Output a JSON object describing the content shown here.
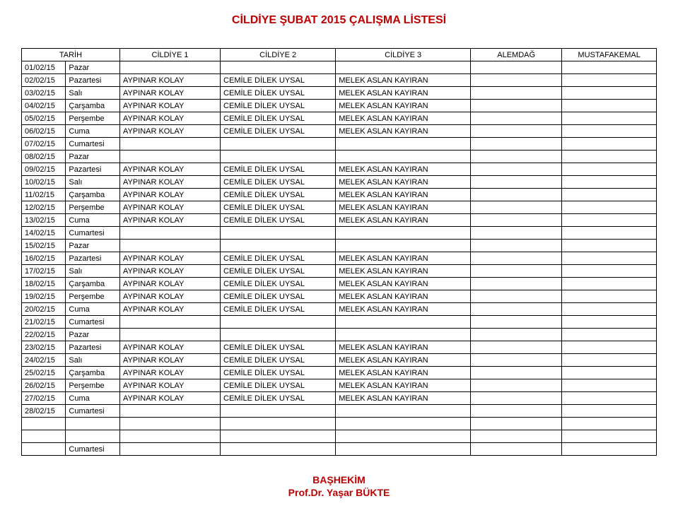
{
  "title": "CİLDİYE  ŞUBAT 2015  ÇALIŞMA LİSTESİ",
  "headers": {
    "date": "TARİH",
    "day": "",
    "c1": "CİLDİYE 1",
    "c2": "CİLDİYE 2",
    "c3": "CİLDİYE 3",
    "c4": "ALEMDAĞ",
    "c5": "MUSTAFAKEMAL"
  },
  "rows": [
    {
      "date": "01/02/15",
      "day": "Pazar",
      "c1": "",
      "c2": "",
      "c3": "",
      "c4": "",
      "c5": ""
    },
    {
      "date": "02/02/15",
      "day": "Pazartesi",
      "c1": "AYPINAR KOLAY",
      "c2": "CEMİLE DİLEK UYSAL",
      "c3": "MELEK ASLAN KAYIRAN",
      "c4": "",
      "c5": ""
    },
    {
      "date": "03/02/15",
      "day": "Salı",
      "c1": "AYPINAR KOLAY",
      "c2": "CEMİLE DİLEK UYSAL",
      "c3": "MELEK ASLAN KAYIRAN",
      "c4": "",
      "c5": ""
    },
    {
      "date": "04/02/15",
      "day": "Çarşamba",
      "c1": "AYPINAR KOLAY",
      "c2": "CEMİLE DİLEK UYSAL",
      "c3": "MELEK ASLAN KAYIRAN",
      "c4": "",
      "c5": ""
    },
    {
      "date": "05/02/15",
      "day": "Perşembe",
      "c1": "AYPINAR KOLAY",
      "c2": "CEMİLE DİLEK UYSAL",
      "c3": "MELEK ASLAN KAYIRAN",
      "c4": "",
      "c5": ""
    },
    {
      "date": "06/02/15",
      "day": "Cuma",
      "c1": "AYPINAR KOLAY",
      "c2": "CEMİLE DİLEK UYSAL",
      "c3": "MELEK ASLAN KAYIRAN",
      "c4": "",
      "c5": ""
    },
    {
      "date": "07/02/15",
      "day": "Cumartesi",
      "c1": "",
      "c2": "",
      "c3": "",
      "c4": "",
      "c5": ""
    },
    {
      "date": "08/02/15",
      "day": "Pazar",
      "c1": "",
      "c2": "",
      "c3": "",
      "c4": "",
      "c5": ""
    },
    {
      "date": "09/02/15",
      "day": "Pazartesi",
      "c1": "AYPINAR KOLAY",
      "c2": "CEMİLE DİLEK UYSAL",
      "c3": "MELEK ASLAN KAYIRAN",
      "c4": "",
      "c5": ""
    },
    {
      "date": "10/02/15",
      "day": "Salı",
      "c1": "AYPINAR KOLAY",
      "c2": "CEMİLE DİLEK UYSAL",
      "c3": "MELEK ASLAN KAYIRAN",
      "c4": "",
      "c5": ""
    },
    {
      "date": "11/02/15",
      "day": "Çarşamba",
      "c1": "AYPINAR KOLAY",
      "c2": "CEMİLE DİLEK UYSAL",
      "c3": "MELEK ASLAN KAYIRAN",
      "c4": "",
      "c5": ""
    },
    {
      "date": "12/02/15",
      "day": "Perşembe",
      "c1": "AYPINAR KOLAY",
      "c2": "CEMİLE DİLEK UYSAL",
      "c3": "MELEK ASLAN KAYIRAN",
      "c4": "",
      "c5": ""
    },
    {
      "date": "13/02/15",
      "day": "Cuma",
      "c1": "AYPINAR KOLAY",
      "c2": "CEMİLE DİLEK UYSAL",
      "c3": "MELEK ASLAN KAYIRAN",
      "c4": "",
      "c5": ""
    },
    {
      "date": "14/02/15",
      "day": "Cumartesi",
      "c1": "",
      "c2": "",
      "c3": "",
      "c4": "",
      "c5": ""
    },
    {
      "date": "15/02/15",
      "day": "Pazar",
      "c1": "",
      "c2": "",
      "c3": "",
      "c4": "",
      "c5": ""
    },
    {
      "date": "16/02/15",
      "day": "Pazartesi",
      "c1": "AYPINAR KOLAY",
      "c2": "CEMİLE DİLEK UYSAL",
      "c3": "MELEK ASLAN KAYIRAN",
      "c4": "",
      "c5": ""
    },
    {
      "date": "17/02/15",
      "day": "Salı",
      "c1": "AYPINAR KOLAY",
      "c2": "CEMİLE DİLEK UYSAL",
      "c3": "MELEK ASLAN KAYIRAN",
      "c4": "",
      "c5": ""
    },
    {
      "date": "18/02/15",
      "day": "Çarşamba",
      "c1": "AYPINAR KOLAY",
      "c2": "CEMİLE DİLEK UYSAL",
      "c3": "MELEK ASLAN KAYIRAN",
      "c4": "",
      "c5": ""
    },
    {
      "date": "19/02/15",
      "day": "Perşembe",
      "c1": "AYPINAR KOLAY",
      "c2": "CEMİLE DİLEK UYSAL",
      "c3": "MELEK ASLAN KAYIRAN",
      "c4": "",
      "c5": ""
    },
    {
      "date": "20/02/15",
      "day": "Cuma",
      "c1": "AYPINAR KOLAY",
      "c2": "CEMİLE DİLEK UYSAL",
      "c3": "MELEK ASLAN KAYIRAN",
      "c4": "",
      "c5": ""
    },
    {
      "date": "21/02/15",
      "day": "Cumartesi",
      "c1": "",
      "c2": "",
      "c3": "",
      "c4": "",
      "c5": ""
    },
    {
      "date": "22/02/15",
      "day": "Pazar",
      "c1": "",
      "c2": "",
      "c3": "",
      "c4": "",
      "c5": ""
    },
    {
      "date": "23/02/15",
      "day": "Pazartesi",
      "c1": "AYPINAR KOLAY",
      "c2": "CEMİLE DİLEK UYSAL",
      "c3": "MELEK ASLAN KAYIRAN",
      "c4": "",
      "c5": ""
    },
    {
      "date": "24/02/15",
      "day": "Salı",
      "c1": "AYPINAR KOLAY",
      "c2": "CEMİLE DİLEK UYSAL",
      "c3": "MELEK ASLAN KAYIRAN",
      "c4": "",
      "c5": ""
    },
    {
      "date": "25/02/15",
      "day": "Çarşamba",
      "c1": "AYPINAR KOLAY",
      "c2": "CEMİLE DİLEK UYSAL",
      "c3": "MELEK ASLAN KAYIRAN",
      "c4": "",
      "c5": ""
    },
    {
      "date": "26/02/15",
      "day": "Perşembe",
      "c1": "AYPINAR KOLAY",
      "c2": "CEMİLE DİLEK UYSAL",
      "c3": "MELEK ASLAN KAYIRAN",
      "c4": "",
      "c5": ""
    },
    {
      "date": "27/02/15",
      "day": "Cuma",
      "c1": "AYPINAR KOLAY",
      "c2": "CEMİLE DİLEK UYSAL",
      "c3": "MELEK ASLAN KAYIRAN",
      "c4": "",
      "c5": ""
    },
    {
      "date": "28/02/15",
      "day": "Cumartesi",
      "c1": "",
      "c2": "",
      "c3": "",
      "c4": "",
      "c5": ""
    },
    {
      "date": "",
      "day": "",
      "c1": "",
      "c2": "",
      "c3": "",
      "c4": "",
      "c5": ""
    },
    {
      "date": "",
      "day": "",
      "c1": "",
      "c2": "",
      "c3": "",
      "c4": "",
      "c5": ""
    },
    {
      "date": "",
      "day": "Cumartesi",
      "c1": "",
      "c2": "",
      "c3": "",
      "c4": "",
      "c5": ""
    }
  ],
  "footer": {
    "line1": "BAŞHEKİM",
    "line2": "Prof.Dr. Yaşar BÜKTE"
  },
  "colors": {
    "title": "#c00000",
    "footer": "#c00000",
    "border": "#000000",
    "text": "#000000",
    "background": "#ffffff"
  }
}
